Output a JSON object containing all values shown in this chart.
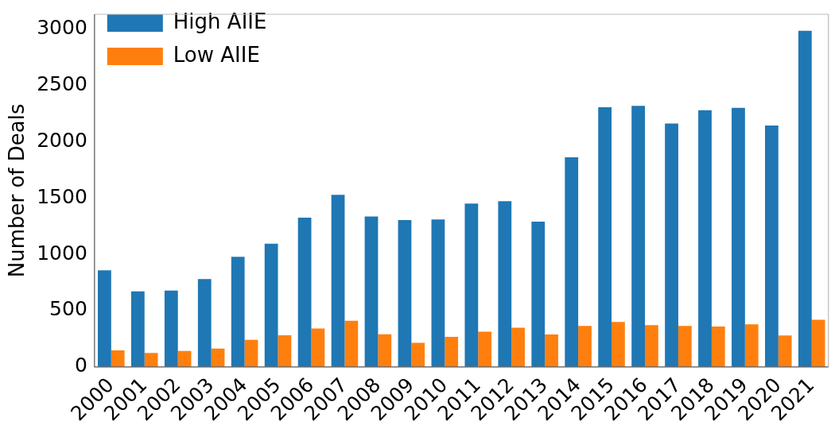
{
  "chart_data": {
    "type": "bar",
    "ylabel": "Number of Deals",
    "categories": [
      "2000",
      "2001",
      "2002",
      "2003",
      "2004",
      "2005",
      "2006",
      "2007",
      "2008",
      "2009",
      "2010",
      "2011",
      "2012",
      "2013",
      "2014",
      "2015",
      "2016",
      "2017",
      "2018",
      "2019",
      "2020",
      "2021"
    ],
    "series": [
      {
        "name": "High AIIE",
        "color": "#1f77b4",
        "values": [
          857,
          670,
          677,
          780,
          978,
          1093,
          1324,
          1527,
          1335,
          1303,
          1308,
          1449,
          1470,
          1289,
          1861,
          2304,
          2318,
          2160,
          2279,
          2300,
          2142,
          2983
        ]
      },
      {
        "name": "Low AIIE",
        "color": "#ff7f0e",
        "values": [
          146,
          123,
          142,
          162,
          240,
          281,
          341,
          409,
          290,
          213,
          267,
          313,
          347,
          288,
          363,
          398,
          370,
          363,
          359,
          377,
          279,
          418
        ]
      }
    ],
    "ylim": [
      0,
      3130
    ],
    "yticks": [
      0,
      500,
      1000,
      1500,
      2000,
      2500,
      3000
    ],
    "grid": false,
    "legend": "top left"
  }
}
